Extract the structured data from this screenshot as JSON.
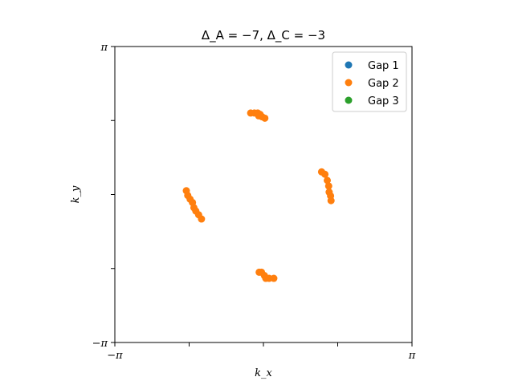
{
  "chart_data": {
    "type": "scatter",
    "title": "Δ_A = −7, Δ_C = −3",
    "xlabel": "k_x",
    "ylabel": "k_y",
    "xlim": [
      -3.14159,
      3.14159
    ],
    "ylim": [
      -3.14159,
      3.14159
    ],
    "xticks": [
      -3.14159,
      -1.5708,
      0,
      1.5708,
      3.14159
    ],
    "yticks": [
      -3.14159,
      -1.5708,
      0,
      1.5708,
      3.14159
    ],
    "xtick_labels": [
      "−π",
      "",
      "",
      "",
      "π"
    ],
    "ytick_labels": [
      "−π",
      "",
      "",
      "",
      "π"
    ],
    "grid": false,
    "legend_position": "top-right",
    "series": [
      {
        "name": "Gap 1",
        "color": "#1f77b4",
        "points": []
      },
      {
        "name": "Gap 2",
        "color": "#ff7f0e",
        "points": [
          [
            -0.27,
            1.73
          ],
          [
            -0.19,
            1.73
          ],
          [
            -0.12,
            1.73
          ],
          [
            -0.07,
            1.7
          ],
          [
            -0.03,
            1.65
          ],
          [
            0.03,
            1.62
          ],
          [
            -0.1,
            1.67
          ],
          [
            1.23,
            0.48
          ],
          [
            1.3,
            0.43
          ],
          [
            1.35,
            0.3
          ],
          [
            1.38,
            0.18
          ],
          [
            1.39,
            0.05
          ],
          [
            1.42,
            -0.03
          ],
          [
            1.43,
            -0.13
          ],
          [
            -1.63,
            0.08
          ],
          [
            -1.6,
            -0.02
          ],
          [
            -1.55,
            -0.1
          ],
          [
            -1.5,
            -0.17
          ],
          [
            -1.47,
            -0.28
          ],
          [
            -1.43,
            -0.35
          ],
          [
            -1.37,
            -0.43
          ],
          [
            -1.31,
            -0.52
          ],
          [
            -0.09,
            -1.65
          ],
          [
            -0.04,
            -1.65
          ],
          [
            0.02,
            -1.72
          ],
          [
            0.05,
            -1.78
          ],
          [
            0.12,
            -1.78
          ],
          [
            0.22,
            -1.78
          ]
        ]
      },
      {
        "name": "Gap 3",
        "color": "#2ca02c",
        "points": []
      }
    ]
  }
}
